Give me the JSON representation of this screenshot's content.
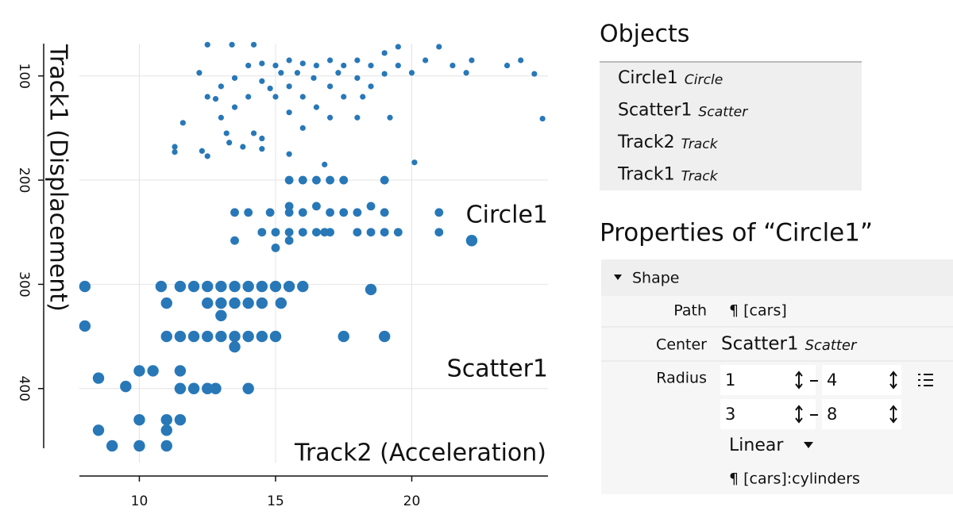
{
  "chart_data": {
    "type": "scatter",
    "x_label": "Track2 (Acceleration)",
    "y_label": "Track1 (Displacement)",
    "annotations": [
      "Circle1",
      "Scatter1"
    ],
    "xlim": [
      7.8,
      25
    ],
    "xticks": [
      10,
      15,
      20
    ],
    "ylim": [
      69,
      471
    ],
    "yticks": [
      100,
      200,
      300,
      400
    ],
    "y_inverted": true,
    "grid": true,
    "series": [
      {
        "name": "Circle1",
        "color": "#2878b8",
        "x": [
          8,
          8,
          8.5,
          8.5,
          9,
          9.5,
          10,
          10,
          10,
          10.5,
          11,
          11,
          11,
          11,
          11,
          10.8,
          11.5,
          11.5,
          11.5,
          11.5,
          11.5,
          12,
          12,
          12,
          12.5,
          12.5,
          12.5,
          12.5,
          12.8,
          13,
          13,
          13,
          13,
          13.5,
          13.5,
          13.5,
          13.5,
          14,
          14,
          14,
          14,
          14.5,
          14.5,
          14.5,
          15,
          15,
          15.5,
          15.2,
          16,
          17.5,
          18.5,
          19,
          13.5,
          14,
          13.5,
          14.5,
          15,
          15,
          15.5,
          15.5,
          15.5,
          15.5,
          15.5,
          16,
          16,
          16,
          16.5,
          16.5,
          16.5,
          17,
          17,
          17,
          17.5,
          17.5,
          18,
          18,
          18.5,
          18.5,
          19,
          19,
          19,
          19.5,
          21,
          21,
          22.2,
          16.8,
          14.8,
          11.3,
          11.3,
          12.3,
          12.5,
          13.3,
          13.8,
          14.2,
          14.5,
          14.5,
          15.5,
          16.8,
          11.6,
          12.2,
          12.5,
          12.8,
          13,
          13,
          13.2,
          13.5,
          13.5,
          14,
          14,
          14.5,
          14.5,
          14.8,
          15,
          15,
          15.2,
          15.5,
          15.5,
          15.5,
          15.8,
          16,
          16,
          16,
          16.4,
          16.5,
          16.5,
          17,
          17,
          17,
          17.3,
          17.5,
          17.5,
          18,
          18,
          18,
          18.2,
          18.5,
          18.5,
          19,
          19,
          19.2,
          19.5,
          19.5,
          20,
          20.1,
          20.5,
          21,
          21.5,
          22.2,
          22,
          23.5,
          24,
          24.5,
          24.8,
          12.5,
          13.4,
          14.2
        ],
        "y": [
          302,
          340,
          390,
          440,
          455,
          398,
          383,
          430,
          455,
          383,
          440,
          455,
          430,
          350,
          318,
          302,
          302,
          350,
          383,
          400,
          430,
          302,
          350,
          400,
          302,
          318,
          350,
          400,
          400,
          302,
          318,
          350,
          330,
          302,
          318,
          350,
          360,
          302,
          318,
          350,
          400,
          302,
          318,
          350,
          302,
          350,
          302,
          318,
          302,
          350,
          305,
          350,
          231,
          231,
          258,
          250,
          250,
          265,
          200,
          225,
          231,
          250,
          258,
          200,
          231,
          250,
          200,
          225,
          250,
          200,
          231,
          250,
          200,
          231,
          231,
          250,
          225,
          250,
          200,
          231,
          250,
          250,
          231,
          250,
          258,
          250,
          231,
          168,
          173,
          172,
          177,
          164,
          168,
          155,
          160,
          170,
          175,
          185,
          145,
          97,
          120,
          122,
          110,
          140,
          155,
          102,
          130,
          90,
          120,
          88,
          105,
          112,
          90,
          120,
          97,
          85,
          110,
          135,
          97,
          88,
          120,
          150,
          102,
          90,
          130,
          85,
          110,
          140,
          97,
          90,
          120,
          85,
          102,
          140,
          120,
          90,
          110,
          78,
          98,
          140,
          72,
          90,
          97,
          183,
          85,
          72,
          90,
          85,
          97,
          90,
          85,
          98,
          141,
          70,
          70,
          70
        ],
        "size": [
          8,
          8,
          8,
          8,
          8,
          8,
          8,
          8,
          8,
          8,
          8,
          8,
          8,
          8,
          8,
          8,
          8,
          8,
          8,
          8,
          8,
          8,
          8,
          8,
          8,
          8,
          8,
          8,
          8,
          8,
          8,
          8,
          8,
          8,
          8,
          8,
          8,
          8,
          8,
          8,
          8,
          8,
          8,
          8,
          8,
          8,
          8,
          8,
          8,
          8,
          8,
          8,
          6,
          6,
          6,
          6,
          6,
          6,
          6,
          6,
          6,
          6,
          6,
          6,
          6,
          6,
          6,
          6,
          6,
          6,
          6,
          6,
          6,
          6,
          6,
          6,
          6,
          6,
          6,
          6,
          6,
          6,
          6,
          6,
          8,
          6,
          6,
          4,
          4,
          4,
          4,
          4,
          4,
          4,
          4,
          4,
          4,
          4,
          4,
          4,
          4,
          4,
          4,
          4,
          4,
          4,
          4,
          4,
          4,
          4,
          4,
          4,
          4,
          4,
          4,
          4,
          4,
          4,
          4,
          4,
          4,
          4,
          4,
          4,
          4,
          4,
          4,
          4,
          4,
          4,
          4,
          4,
          4,
          4,
          4,
          4,
          4,
          4,
          4,
          4,
          4,
          4,
          4,
          4,
          4,
          4,
          4,
          4,
          4,
          4,
          4,
          4,
          4,
          4,
          4,
          4
        ]
      }
    ]
  },
  "objects": {
    "title": "Objects",
    "items": [
      {
        "name": "Circle1",
        "kind": "Circle"
      },
      {
        "name": "Scatter1",
        "kind": "Scatter"
      },
      {
        "name": "Track2",
        "kind": "Track"
      },
      {
        "name": "Track1",
        "kind": "Track"
      }
    ]
  },
  "properties": {
    "title": "Properties of “Circle1”",
    "section": "Shape",
    "path_label": "Path",
    "path": "¶ [cars]",
    "center_label": "Center",
    "center_name": "Scatter1",
    "center_kind": "Scatter",
    "radius_label": "Radius",
    "radius": [
      [
        "1",
        "4"
      ],
      [
        "3",
        "8"
      ]
    ],
    "scale": "Linear",
    "radius_field": "¶ [cars]:cylinders"
  }
}
